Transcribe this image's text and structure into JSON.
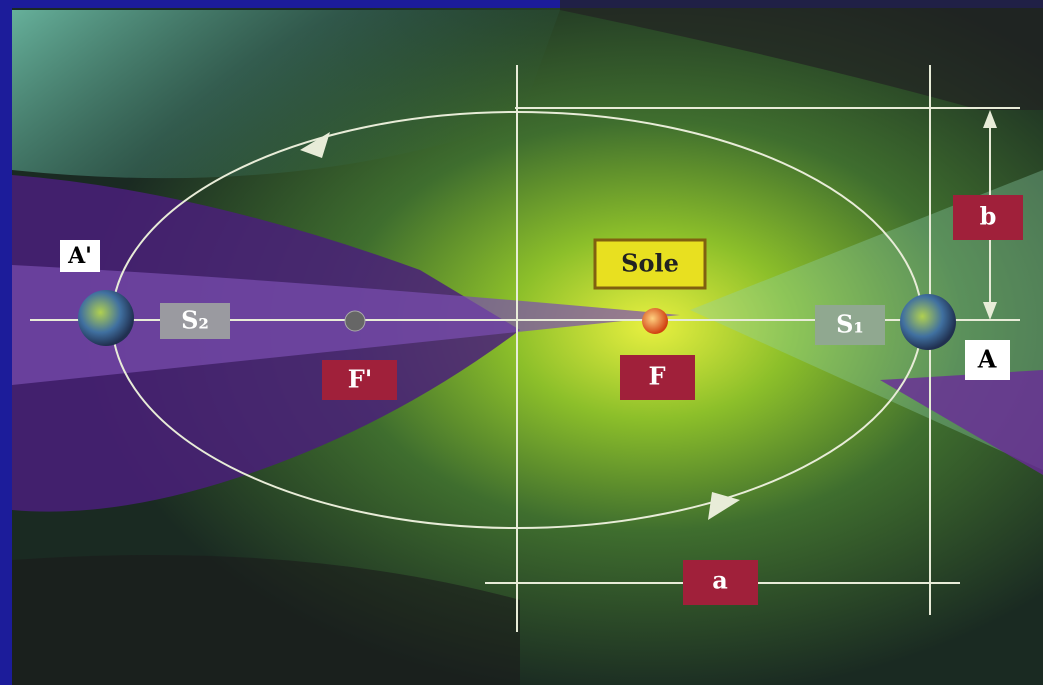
{
  "labels": {
    "a_prime": "A'",
    "s2": "S₂",
    "sole": "Sole",
    "f_prime": "F'",
    "f": "F",
    "s1": "S₁",
    "a_point": "A",
    "b": "b",
    "a": "a"
  }
}
